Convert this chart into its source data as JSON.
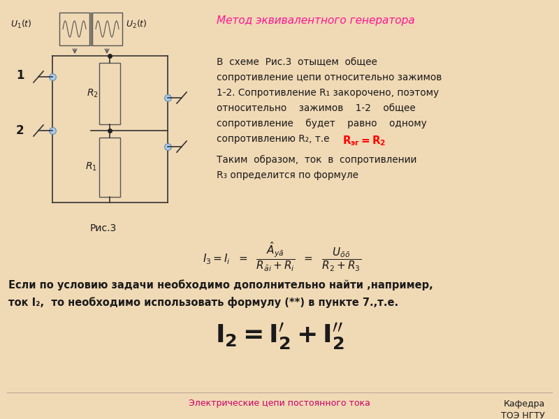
{
  "bg_color": "#f0d9b5",
  "title_text": "Метод эквивалентного генератора",
  "title_color": "#ff1493",
  "para1_line1": "В  схеме  Рис.3  отыщем  общее",
  "para1_line2": "сопротивление цепи относительно зажимов",
  "para1_line3": "1-2. Сопротивление R₁ закорочено, поэтому",
  "para1_line4": "относительно    зажимов    1-2    общее",
  "para1_line5": "сопротивление    будет    равно    одному",
  "para1_line6": "сопротивлению R₂, т.е",
  "red_text": "  Rэг=R₂",
  "para2_line1": "Таким  образом,  ток  в  сопротивлении",
  "para2_line2": "R₃ определится по формуле",
  "bottom_text1": "Если по условию задачи необходимо дополнительно найти ,например,",
  "bottom_text2": "ток I₂,  то необходимо использовать формулу (**) в пункте 7.,т.е.",
  "footer_text": "Электрические цепи постоянного тока",
  "footer_color": "#cc0066",
  "dept_text": "Кафедра\nТОЭ НГТУ",
  "text_color": "#1a1a1a",
  "circuit_color": "#333333",
  "node_color": "#aaccee"
}
